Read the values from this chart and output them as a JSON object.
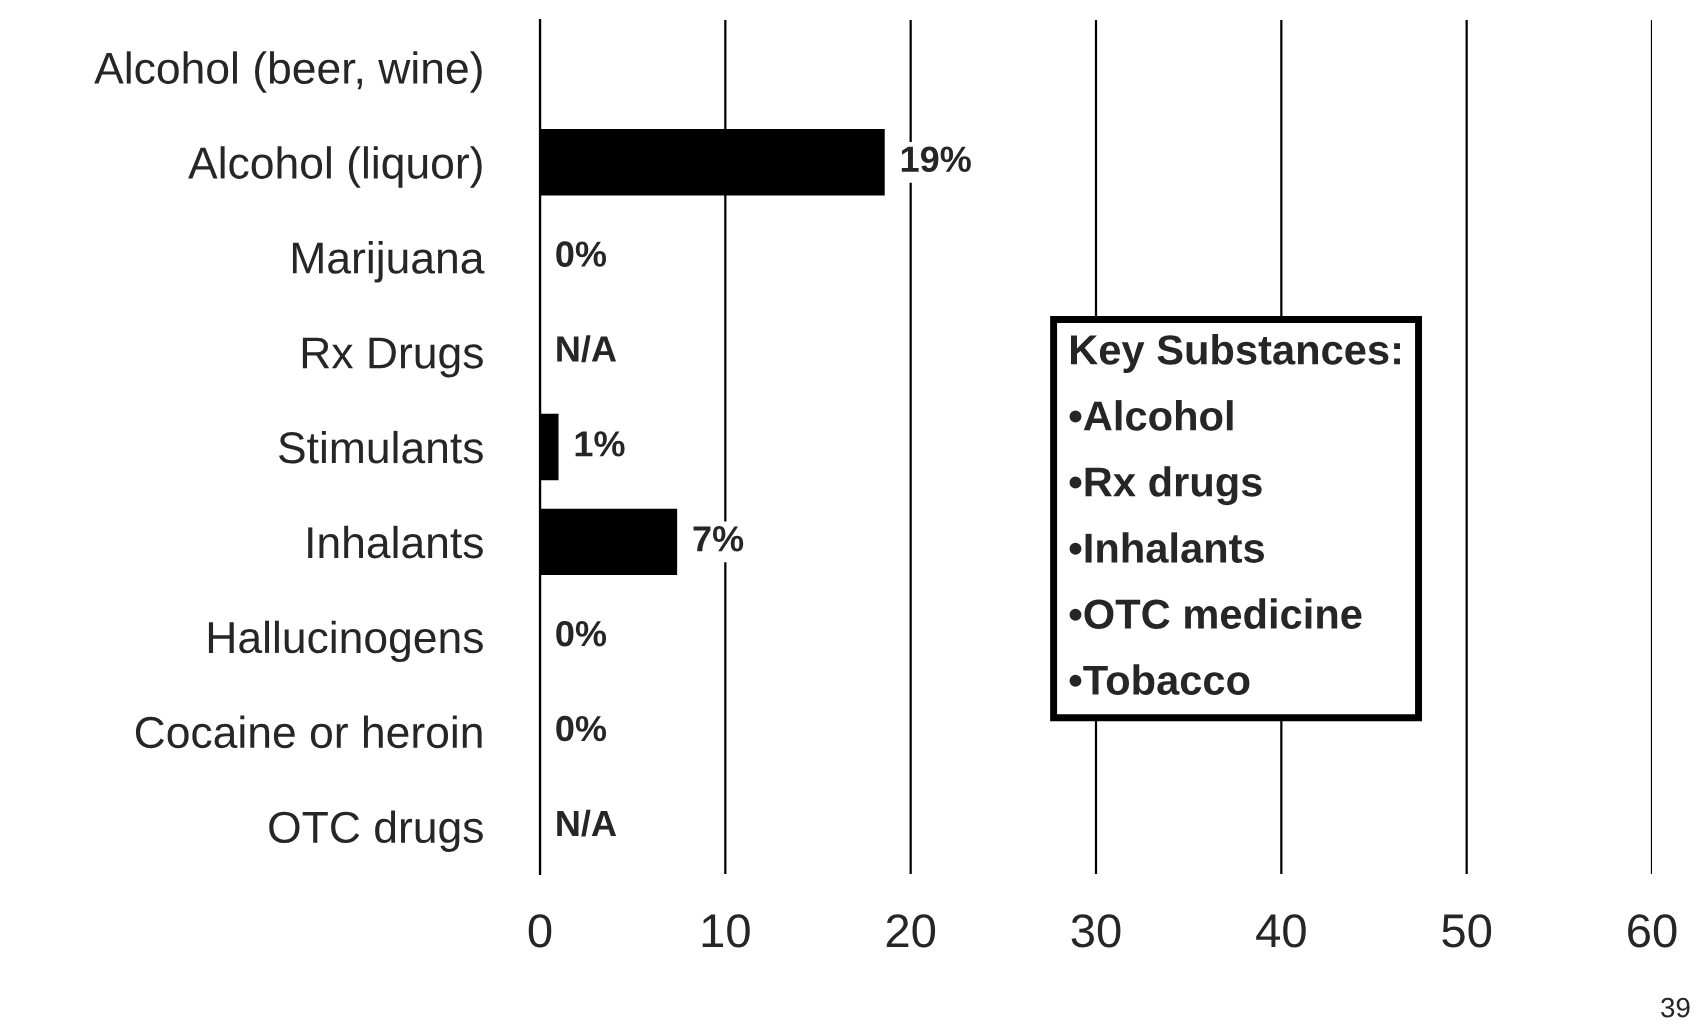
{
  "chart_data": {
    "type": "bar",
    "orientation": "horizontal",
    "categories": [
      "Alcohol (beer, wine)",
      "Alcohol (liquor)",
      "Marijuana",
      "Rx Drugs",
      "Stimulants",
      "Inhalants",
      "Hallucinogens",
      "Cocaine or heroin",
      "OTC drugs"
    ],
    "values": [
      null,
      18.6,
      0,
      null,
      1.0,
      7.4,
      0,
      0,
      null
    ],
    "value_labels": [
      null,
      "19%",
      "0%",
      "N/A",
      "1%",
      "7%",
      "0%",
      "0%",
      "N/A"
    ],
    "color": "#000000",
    "xlim": [
      0,
      60
    ],
    "xticks": [
      0,
      10,
      20,
      30,
      40,
      50,
      60
    ],
    "grid": "x",
    "annotations": [
      "Key Substances:",
      "•Alcohol",
      "•Rx drugs",
      "•Inhalants",
      "•OTC medicine",
      "•Tobacco",
      "39"
    ]
  }
}
